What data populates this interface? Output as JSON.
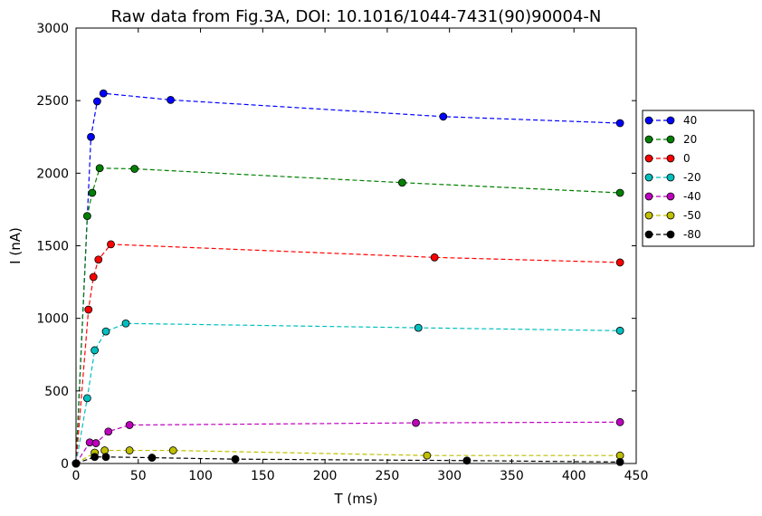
{
  "chart_data": {
    "type": "line",
    "title": "Raw data from Fig.3A, DOI: 10.1016/1044-7431(90)90004-N",
    "xlabel": "T (ms)",
    "ylabel": "I (nA)",
    "xlim": [
      0,
      450
    ],
    "ylim": [
      0,
      3000
    ],
    "xticks": [
      "0",
      "50",
      "100",
      "150",
      "200",
      "250",
      "300",
      "350",
      "400",
      "450"
    ],
    "yticks": [
      "0",
      "500",
      "1000",
      "1500",
      "2000",
      "2500",
      "3000"
    ],
    "grid": false,
    "legend_position": "right",
    "series": [
      {
        "name": "40",
        "color": "#0000ff",
        "x": [
          0,
          12,
          17,
          22,
          76,
          295,
          437
        ],
        "y": [
          0,
          2250,
          2495,
          2550,
          2505,
          2390,
          2345
        ]
      },
      {
        "name": "20",
        "color": "#008000",
        "x": [
          0,
          9,
          13,
          19,
          47,
          262,
          437
        ],
        "y": [
          0,
          1705,
          1865,
          2035,
          2030,
          1935,
          1865
        ]
      },
      {
        "name": "0",
        "color": "#ff0000",
        "x": [
          0,
          10,
          14,
          18,
          28,
          288,
          437
        ],
        "y": [
          0,
          1060,
          1285,
          1405,
          1510,
          1420,
          1385
        ]
      },
      {
        "name": "-20",
        "color": "#00bfbf",
        "x": [
          0,
          9,
          15,
          24,
          40,
          275,
          437
        ],
        "y": [
          0,
          450,
          780,
          910,
          965,
          935,
          915
        ]
      },
      {
        "name": "-40",
        "color": "#bf00bf",
        "x": [
          0,
          11,
          16,
          26,
          43,
          273,
          437
        ],
        "y": [
          0,
          145,
          140,
          220,
          265,
          280,
          285
        ]
      },
      {
        "name": "-50",
        "color": "#bfbf00",
        "x": [
          0,
          15,
          23,
          43,
          78,
          282,
          437
        ],
        "y": [
          0,
          75,
          90,
          90,
          90,
          55,
          55
        ]
      },
      {
        "name": "-80",
        "color": "#000000",
        "x": [
          0,
          15,
          24,
          61,
          128,
          314,
          437
        ],
        "y": [
          0,
          45,
          45,
          40,
          30,
          20,
          10
        ]
      }
    ]
  }
}
